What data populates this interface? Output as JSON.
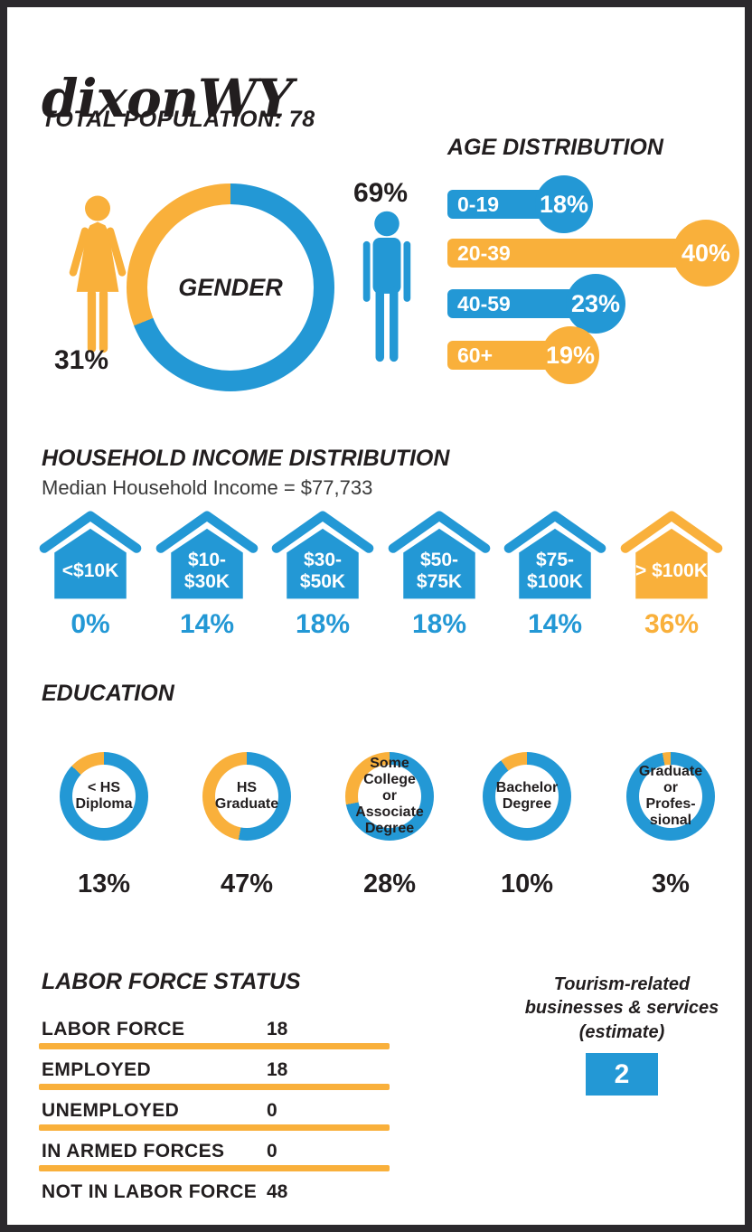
{
  "colors": {
    "blue": "#2398d5",
    "yellow": "#f9b03b",
    "border": "#2b292d",
    "text": "#221e1f"
  },
  "header": {
    "title": "dixonWY",
    "subtitle": "TOTAL POPULATION: 78"
  },
  "gender": {
    "label": "GENDER",
    "female": {
      "pct": "31%",
      "value": 31,
      "color": "yellow"
    },
    "male": {
      "pct": "69%",
      "value": 69,
      "color": "blue"
    }
  },
  "age": {
    "title": "AGE DISTRIBUTION",
    "rows": [
      {
        "label": "0-19",
        "pct": "18%",
        "value": 18,
        "color": "blue"
      },
      {
        "label": "20-39",
        "pct": "40%",
        "value": 40,
        "color": "yellow"
      },
      {
        "label": "40-59",
        "pct": "23%",
        "value": 23,
        "color": "blue"
      },
      {
        "label": "60+",
        "pct": "19%",
        "value": 19,
        "color": "yellow"
      }
    ]
  },
  "income": {
    "title": "HOUSEHOLD INCOME DISTRIBUTION",
    "subtitle": "Median Household Income = $77,733",
    "houses": [
      {
        "range": "<$10K",
        "pct": "0%",
        "value": 0,
        "color": "blue"
      },
      {
        "range": "$10-\n$30K",
        "pct": "14%",
        "value": 14,
        "color": "blue"
      },
      {
        "range": "$30-\n$50K",
        "pct": "18%",
        "value": 18,
        "color": "blue"
      },
      {
        "range": "$50-\n$75K",
        "pct": "18%",
        "value": 18,
        "color": "blue"
      },
      {
        "range": "$75-\n$100K",
        "pct": "14%",
        "value": 14,
        "color": "blue"
      },
      {
        "range": "> $100K",
        "pct": "36%",
        "value": 36,
        "color": "yellow"
      }
    ]
  },
  "education": {
    "title": "EDUCATION",
    "donuts": [
      {
        "label": "< HS\nDiploma",
        "pct": "13%",
        "value": 13
      },
      {
        "label": "HS\nGraduate",
        "pct": "47%",
        "value": 47
      },
      {
        "label": "Some\nCollege or\nAssociate\nDegree",
        "pct": "28%",
        "value": 28
      },
      {
        "label": "Bachelor\nDegree",
        "pct": "10%",
        "value": 10
      },
      {
        "label": "Graduate\nor Profes-\nsional",
        "pct": "3%",
        "value": 3
      }
    ]
  },
  "labor": {
    "title": "LABOR FORCE STATUS",
    "rows": [
      {
        "label": "LABOR FORCE",
        "value": "18"
      },
      {
        "label": "EMPLOYED",
        "value": "18"
      },
      {
        "label": "UNEMPLOYED",
        "value": "0"
      },
      {
        "label": "IN ARMED FORCES",
        "value": "0"
      },
      {
        "label": "NOT IN LABOR FORCE",
        "value": "48"
      }
    ]
  },
  "tourism": {
    "label": "Tourism-related\nbusinesses & services\n(estimate)",
    "value": "2"
  },
  "chart_data": [
    {
      "type": "pie",
      "title": "GENDER",
      "labels": [
        "Male",
        "Female"
      ],
      "values": [
        69,
        31
      ],
      "colors": [
        "#2398d5",
        "#f9b03b"
      ],
      "note": "donut with GENDER in center; male figure 69% blue, female figure 31% yellow"
    },
    {
      "type": "bar",
      "title": "AGE DISTRIBUTION",
      "categories": [
        "0-19",
        "20-39",
        "40-59",
        "60+"
      ],
      "values": [
        18,
        40,
        23,
        19
      ],
      "unit": "%",
      "bar_colors": [
        "#2398d5",
        "#f9b03b",
        "#2398d5",
        "#f9b03b"
      ],
      "layout": "horizontal lollipop bars, value shown in bubble at bar end"
    },
    {
      "type": "bar",
      "title": "HOUSEHOLD INCOME DISTRIBUTION",
      "annotation": "Median Household Income = $77,733",
      "categories": [
        "<$10K",
        "$10-$30K",
        "$30-$50K",
        "$50-$75K",
        "$75-$100K",
        ">$100K"
      ],
      "values": [
        0,
        14,
        18,
        18,
        14,
        36
      ],
      "unit": "%",
      "bar_colors": [
        "#2398d5",
        "#2398d5",
        "#2398d5",
        "#2398d5",
        "#2398d5",
        "#f9b03b"
      ],
      "layout": "house icon pictograms with % below"
    },
    {
      "type": "pie",
      "title": "EDUCATION",
      "categories": [
        "< HS Diploma",
        "HS Graduate",
        "Some College or Associate Degree",
        "Bachelor Degree",
        "Graduate or Professional"
      ],
      "values": [
        13,
        47,
        28,
        10,
        3
      ],
      "unit": "%",
      "layout": "five separate donuts; yellow arc = value, rest blue; % below each"
    },
    {
      "type": "table",
      "title": "LABOR FORCE STATUS",
      "rows": [
        [
          "LABOR FORCE",
          18
        ],
        [
          "EMPLOYED",
          18
        ],
        [
          "UNEMPLOYED",
          0
        ],
        [
          "IN ARMED FORCES",
          0
        ],
        [
          "NOT IN LABOR FORCE",
          48
        ]
      ]
    },
    {
      "type": "table",
      "title": "Tourism-related businesses & services (estimate)",
      "rows": [
        [
          "Tourism-related businesses & services (estimate)",
          2
        ]
      ]
    }
  ]
}
